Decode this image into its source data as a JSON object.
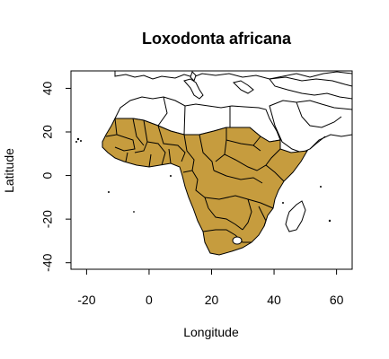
{
  "chart_data": {
    "type": "map",
    "title": "Loxodonta africana",
    "xlabel": "Longitude",
    "ylabel": "Latitude",
    "xlim": [
      -25,
      65
    ],
    "ylim": [
      -43,
      48
    ],
    "x_ticks": [
      "-20",
      "0",
      "20",
      "40",
      "60"
    ],
    "x_tick_values": [
      -20,
      0,
      20,
      40,
      60
    ],
    "y_ticks": [
      "-40",
      "-20",
      "0",
      "20",
      "40"
    ],
    "y_tick_values": [
      -40,
      -20,
      0,
      20,
      40
    ],
    "range_color": "#C69C3E",
    "outline_color": "#000000",
    "background_color": "#FFFFFF"
  }
}
